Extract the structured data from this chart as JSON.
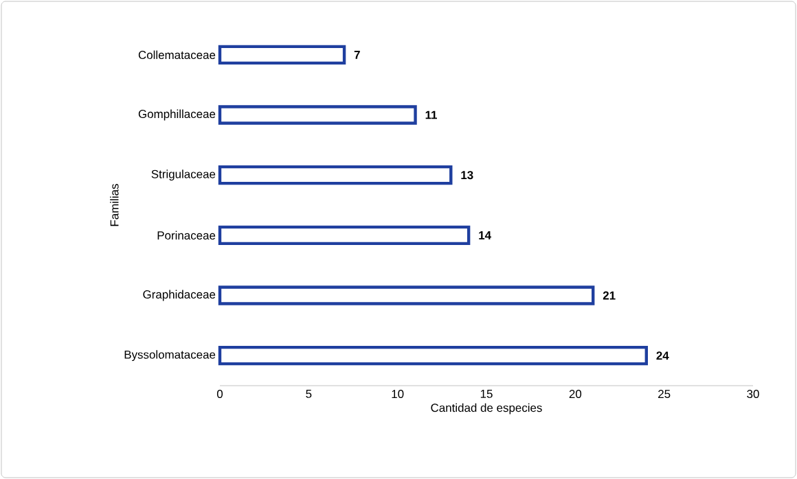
{
  "chart_data": {
    "type": "bar",
    "orientation": "horizontal",
    "xlabel": "Cantidad de especies",
    "ylabel": "Familias",
    "categories": [
      "Collemataceae",
      "Gomphillaceae",
      "Strigulaceae",
      "Porinaceae",
      "Graphidaceae",
      "Byssolomataceae"
    ],
    "values": [
      7,
      11,
      13,
      14,
      21,
      24
    ],
    "color": "#1f3f9f",
    "xlim": [
      0,
      30
    ],
    "xticks": [
      0,
      5,
      10,
      15,
      20,
      25,
      30
    ],
    "data_labels": true
  }
}
